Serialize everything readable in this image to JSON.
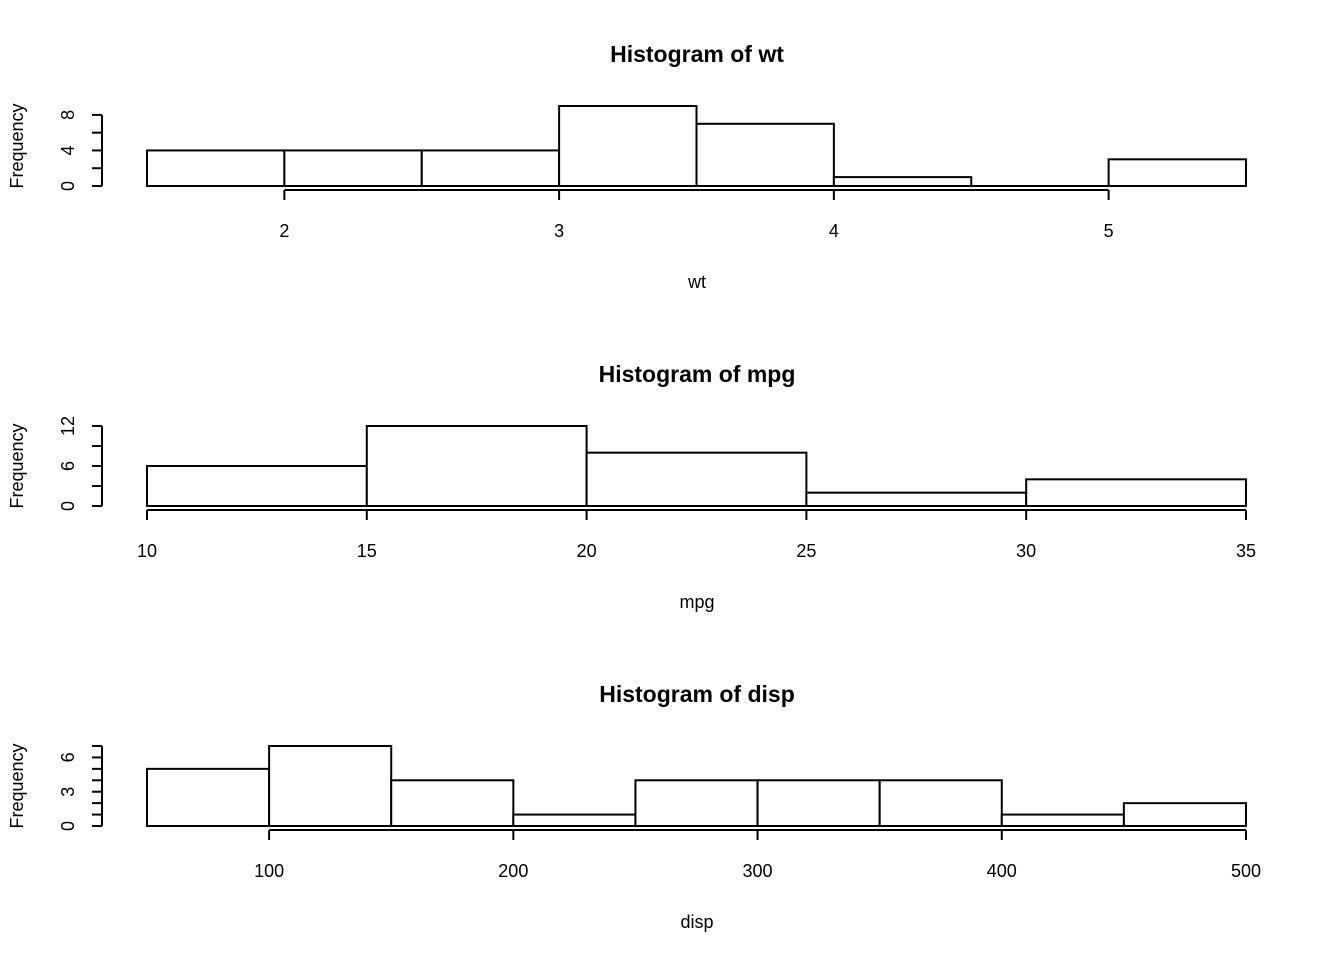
{
  "chart_data": [
    {
      "type": "bar",
      "title": "Histogram of wt",
      "xlabel": "wt",
      "ylabel": "Frequency",
      "bins": [
        {
          "x0": 1.5,
          "x1": 2.0,
          "count": 4
        },
        {
          "x0": 2.0,
          "x1": 2.5,
          "count": 4
        },
        {
          "x0": 2.5,
          "x1": 3.0,
          "count": 4
        },
        {
          "x0": 3.0,
          "x1": 3.5,
          "count": 9
        },
        {
          "x0": 3.5,
          "x1": 4.0,
          "count": 7
        },
        {
          "x0": 4.0,
          "x1": 4.5,
          "count": 1
        },
        {
          "x0": 4.5,
          "x1": 5.0,
          "count": 0
        },
        {
          "x0": 5.0,
          "x1": 5.5,
          "count": 3
        }
      ],
      "xlim": [
        1.5,
        5.5
      ],
      "ylim": [
        0,
        9
      ],
      "xticks": [
        2,
        3,
        4,
        5
      ],
      "xtick_labels": [
        "2",
        "3",
        "4",
        "5"
      ],
      "yticks": [
        0,
        2,
        4,
        6,
        8
      ],
      "ytick_labels": [
        "0",
        "",
        "4",
        "",
        "8"
      ]
    },
    {
      "type": "bar",
      "title": "Histogram of mpg",
      "xlabel": "mpg",
      "ylabel": "Frequency",
      "bins": [
        {
          "x0": 10,
          "x1": 15,
          "count": 6
        },
        {
          "x0": 15,
          "x1": 20,
          "count": 12
        },
        {
          "x0": 20,
          "x1": 25,
          "count": 8
        },
        {
          "x0": 25,
          "x1": 30,
          "count": 2
        },
        {
          "x0": 30,
          "x1": 35,
          "count": 4
        }
      ],
      "xlim": [
        10,
        35
      ],
      "ylim": [
        0,
        12
      ],
      "xticks": [
        10,
        15,
        20,
        25,
        30,
        35
      ],
      "xtick_labels": [
        "10",
        "15",
        "20",
        "25",
        "30",
        "35"
      ],
      "yticks": [
        0,
        3,
        6,
        9,
        12
      ],
      "ytick_labels": [
        "0",
        "",
        "6",
        "",
        "12"
      ]
    },
    {
      "type": "bar",
      "title": "Histogram of disp",
      "xlabel": "disp",
      "ylabel": "Frequency",
      "bins": [
        {
          "x0": 50,
          "x1": 100,
          "count": 5
        },
        {
          "x0": 100,
          "x1": 150,
          "count": 7
        },
        {
          "x0": 150,
          "x1": 200,
          "count": 4
        },
        {
          "x0": 200,
          "x1": 250,
          "count": 1
        },
        {
          "x0": 250,
          "x1": 300,
          "count": 4
        },
        {
          "x0": 300,
          "x1": 350,
          "count": 4
        },
        {
          "x0": 350,
          "x1": 400,
          "count": 4
        },
        {
          "x0": 400,
          "x1": 450,
          "count": 1
        },
        {
          "x0": 450,
          "x1": 500,
          "count": 2
        }
      ],
      "xlim": [
        50,
        500
      ],
      "ylim": [
        0,
        7
      ],
      "xticks": [
        100,
        200,
        300,
        400,
        500
      ],
      "xtick_labels": [
        "100",
        "200",
        "300",
        "400",
        "500"
      ],
      "yticks": [
        0,
        1,
        2,
        3,
        4,
        5,
        6,
        7
      ],
      "ytick_labels": [
        "0",
        "",
        "",
        "3",
        "",
        "",
        "6",
        ""
      ]
    }
  ]
}
